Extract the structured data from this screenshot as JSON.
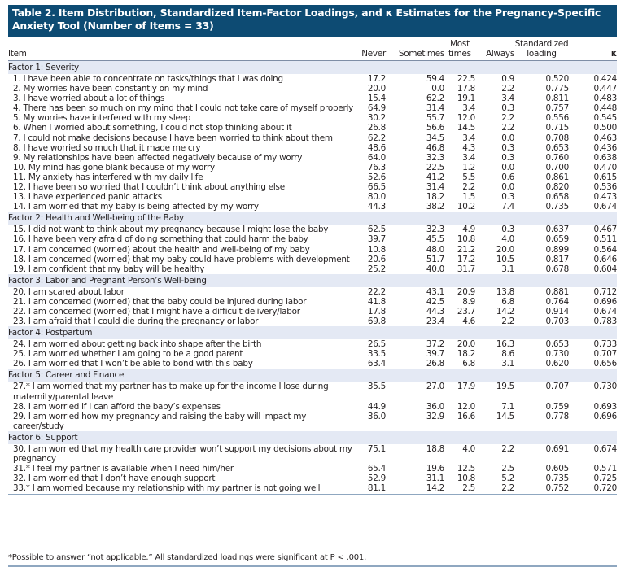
{
  "title": "Table 2. Item Distribution, Standardized Item-Factor Loadings, and κ Estimates for the Pregnancy-Specific Anxiety Tool (Number of Items = 33)",
  "headers": {
    "item": "Item",
    "never": "Never",
    "sometimes": "Sometimes",
    "most_times": "Most times",
    "always": "Always",
    "loading": "Standardized loading",
    "kappa": "κ"
  },
  "factors": [
    {
      "label": "Factor 1: Severity",
      "rows": [
        [
          "1. I have been able to concentrate on tasks/things that I was doing",
          "17.2",
          "59.4",
          "22.5",
          "0.9",
          "0.520",
          "0.424"
        ],
        [
          "2. My worries have been constantly on my mind",
          "20.0",
          "0.0",
          "17.8",
          "2.2",
          "0.775",
          "0.447"
        ],
        [
          "3. I have worried about a lot of things",
          "15.4",
          "62.2",
          "19.1",
          "3.4",
          "0.811",
          "0.483"
        ],
        [
          "4. There has been so much on my mind that I could not take care of myself properly",
          "64.9",
          "31.4",
          "3.4",
          "0.3",
          "0.757",
          "0.448"
        ],
        [
          "5. My worries have interfered with my sleep",
          "30.2",
          "55.7",
          "12.0",
          "2.2",
          "0.556",
          "0.545"
        ],
        [
          "6. When I worried about something, I could not stop thinking about it",
          "26.8",
          "56.6",
          "14.5",
          "2.2",
          "0.715",
          "0.500"
        ],
        [
          "7. I could not make decisions because I have been worried to think about them",
          "62.2",
          "34.5",
          "3.4",
          "0.0",
          "0.708",
          "0.463"
        ],
        [
          "8. I have worried so much that it made me cry",
          "48.6",
          "46.8",
          "4.3",
          "0.3",
          "0.653",
          "0.436"
        ],
        [
          "9. My relationships have been affected negatively because of my worry",
          "64.0",
          "32.3",
          "3.4",
          "0.3",
          "0.760",
          "0.638"
        ],
        [
          "10. My mind has gone blank because of my worry",
          "76.3",
          "22.5",
          "1.2",
          "0.0",
          "0.700",
          "0.470"
        ],
        [
          "11. My anxiety has interfered with my daily life",
          "52.6",
          "41.2",
          "5.5",
          "0.6",
          "0.861",
          "0.615"
        ],
        [
          "12. I have been so worried that I couldn’t think about anything else",
          "66.5",
          "31.4",
          "2.2",
          "0.0",
          "0.820",
          "0.536"
        ],
        [
          "13. I have experienced panic attacks",
          "80.0",
          "18.2",
          "1.5",
          "0.3",
          "0.658",
          "0.473"
        ],
        [
          "14. I am worried that my baby is being affected by my worry",
          "44.3",
          "38.2",
          "10.2",
          "7.4",
          "0.735",
          "0.674"
        ]
      ]
    },
    {
      "label": "Factor 2: Health and Well-being of the Baby",
      "rows": [
        [
          "15. I did not want to think about my pregnancy because I might lose the baby",
          "62.5",
          "32.3",
          "4.9",
          "0.3",
          "0.637",
          "0.467"
        ],
        [
          "16. I have been very afraid of doing something that could harm the baby",
          "39.7",
          "45.5",
          "10.8",
          "4.0",
          "0.659",
          "0.511"
        ],
        [
          "17. I am concerned (worried) about the health and well-being of my baby",
          "10.8",
          "48.0",
          "21.2",
          "20.0",
          "0.899",
          "0.564"
        ],
        [
          "18. I am concerned (worried) that my baby could have problems with development",
          "20.6",
          "51.7",
          "17.2",
          "10.5",
          "0.817",
          "0.646"
        ],
        [
          "19. I am confident that my baby will be healthy",
          "25.2",
          "40.0",
          "31.7",
          "3.1",
          "0.678",
          "0.604"
        ]
      ]
    },
    {
      "label": "Factor 3: Labor and Pregnant Person’s Well-being",
      "rows": [
        [
          "20. I am scared about labor",
          "22.2",
          "43.1",
          "20.9",
          "13.8",
          "0.881",
          "0.712"
        ],
        [
          "21. I am concerned (worried) that the baby could be injured during labor",
          "41.8",
          "42.5",
          "8.9",
          "6.8",
          "0.764",
          "0.696"
        ],
        [
          "22. I am concerned (worried) that I might have a difficult delivery/labor",
          "17.8",
          "44.3",
          "23.7",
          "14.2",
          "0.914",
          "0.674"
        ],
        [
          "23. I am afraid that I could die during the pregnancy or labor",
          "69.8",
          "23.4",
          "4.6",
          "2.2",
          "0.703",
          "0.783"
        ]
      ]
    },
    {
      "label": "Factor 4: Postpartum",
      "rows": [
        [
          "24. I am worried about getting back into shape after the birth",
          "26.5",
          "37.2",
          "20.0",
          "16.3",
          "0.653",
          "0.733"
        ],
        [
          "25. I am worried whether I am going to be a good parent",
          "33.5",
          "39.7",
          "18.2",
          "8.6",
          "0.730",
          "0.707"
        ],
        [
          "26. I am worried that I won’t be able to bond with this baby",
          "63.4",
          "26.8",
          "6.8",
          "3.1",
          "0.620",
          "0.656"
        ]
      ]
    },
    {
      "label": "Factor 5: Career and Finance",
      "rows": [
        [
          "27.* I am worried that my partner has to make up for the income I lose during maternity/parental leave",
          "35.5",
          "27.0",
          "17.9",
          "19.5",
          "0.707",
          "0.730"
        ],
        [
          "28. I am worried if I can afford the baby’s expenses",
          "44.9",
          "36.0",
          "12.0",
          "7.1",
          "0.759",
          "0.693"
        ],
        [
          "29. I am worried how my pregnancy and raising the baby will impact my career/study",
          "36.0",
          "32.9",
          "16.6",
          "14.5",
          "0.778",
          "0.696"
        ]
      ]
    },
    {
      "label": "Factor 6: Support",
      "rows": [
        [
          "30. I am worried that my health care provider won’t support my decisions about my pregnancy",
          "75.1",
          "18.8",
          "4.0",
          "2.2",
          "0.691",
          "0.674"
        ],
        [
          "31.* I feel my partner is available when I need him/her",
          "65.4",
          "19.6",
          "12.5",
          "2.5",
          "0.605",
          "0.571"
        ],
        [
          "32. I am worried that I don’t have enough support",
          "52.9",
          "31.1",
          "10.8",
          "5.2",
          "0.735",
          "0.725"
        ],
        [
          "33.* I am worried because my relationship with my partner is not going well",
          "81.1",
          "14.2",
          "2.5",
          "2.2",
          "0.752",
          "0.720"
        ]
      ]
    }
  ],
  "footnote": "*Possible to answer “not applicable.” All standardized loadings were significant at P < .001."
}
